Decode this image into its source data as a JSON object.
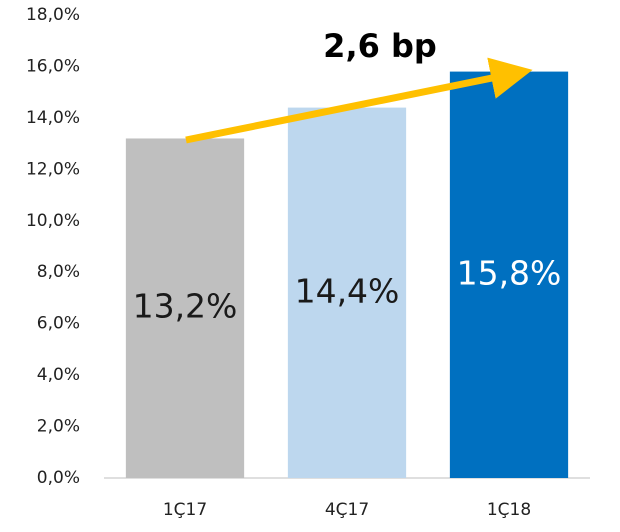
{
  "chart_data": {
    "type": "bar",
    "annotation": "2,6 bp",
    "categories": [
      "1Ç17",
      "4Ç17",
      "1Ç18"
    ],
    "values": [
      13.2,
      14.4,
      15.8
    ],
    "value_labels": [
      "13,2%",
      "14,4%",
      "15,8%"
    ],
    "colors": [
      "#bfbfbf",
      "#bdd7ee",
      "#0070c0"
    ],
    "value_label_colors": [
      "#1a1a1a",
      "#1a1a1a",
      "#ffffff"
    ],
    "ylim": [
      0,
      18
    ],
    "yticks": [
      {
        "value": 0,
        "label": "0,0%"
      },
      {
        "value": 2,
        "label": "2,0%"
      },
      {
        "value": 4,
        "label": "4,0%"
      },
      {
        "value": 6,
        "label": "6,0%"
      },
      {
        "value": 8,
        "label": "8,0%"
      },
      {
        "value": 10,
        "label": "10,0%"
      },
      {
        "value": 12,
        "label": "12,0%"
      },
      {
        "value": 14,
        "label": "14,0%"
      },
      {
        "value": 16,
        "label": "16,0%"
      },
      {
        "value": 18,
        "label": "18,0%"
      }
    ],
    "grid": false
  }
}
